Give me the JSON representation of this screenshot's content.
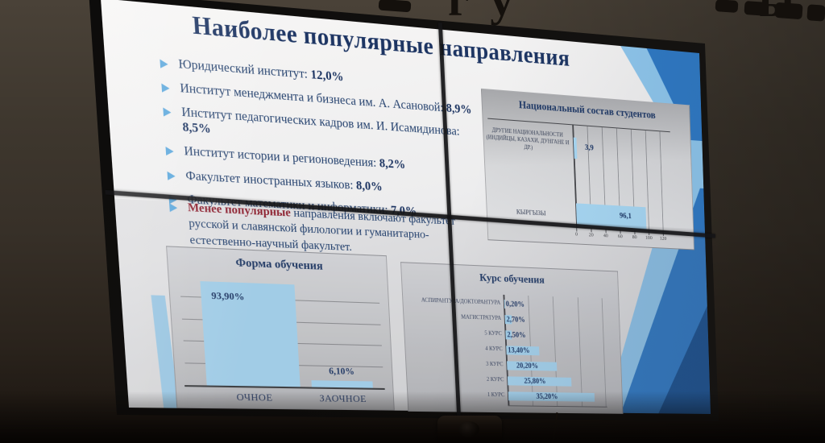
{
  "background": {
    "wall_letters_left": "гу",
    "wall_letters_right": "ы"
  },
  "slide": {
    "title": "Наиболее популярные направления",
    "bullets": [
      {
        "label": "Юридический институт: ",
        "value": "12,0%"
      },
      {
        "label": "Институт менеджмента и бизнеса им. А. Асановой: ",
        "value": "8,9%"
      },
      {
        "label": "Институт педагогических кадров им. И. Исамидинова: ",
        "value": "8,5%"
      },
      {
        "label": "Институт истории и регионоведения: ",
        "value": "8,2%"
      },
      {
        "label": "Факультет иностранных языков: ",
        "value": "8,0%"
      },
      {
        "label": "Факультет математики и информатики: ",
        "value": "7,0%"
      }
    ],
    "note": {
      "highlight": "Менее популярные",
      "rest": " направления включают факультет русской и славянской филологии и гуманитарно-естественно-научный факультет."
    }
  },
  "chart_data": [
    {
      "type": "bar",
      "orientation": "horizontal",
      "title": "Национальный состав студентов",
      "categories": [
        "ДРУГИЕ НАЦИОНАЛЬНОСТИ (ИНДИЙЦЫ, КАЗАХИ, ДУНГАНЕ И ДР.)",
        "КЫРГЫЗЫ"
      ],
      "values": [
        3.9,
        96.1
      ],
      "value_labels": [
        "3,9",
        "96,1"
      ],
      "xlim": [
        0,
        120
      ],
      "xticks": [
        "0",
        "20",
        "40",
        "60",
        "80",
        "100",
        "120"
      ],
      "grid": true,
      "legend": false,
      "bar_color": "#a7d7f3"
    },
    {
      "type": "bar",
      "orientation": "vertical",
      "title": "Форма обучения",
      "categories": [
        "ОЧНОЕ",
        "ЗАОЧНОЕ"
      ],
      "values": [
        93.9,
        6.1
      ],
      "value_labels": [
        "93,90%",
        "6,10%"
      ],
      "ylim": [
        0,
        100
      ],
      "grid": true,
      "legend": false,
      "bar_color": "#a7d7f3"
    },
    {
      "type": "bar",
      "orientation": "horizontal",
      "title": "Курс обучения",
      "categories": [
        "АСПИРАНТУРА/ДОКТОРАНТУРА",
        "МАГИСТРАТУРА",
        "5 КУРС",
        "4 КУРС",
        "3 КУРС",
        "2 КУРС",
        "1 КУРС"
      ],
      "values": [
        0.2,
        2.7,
        2.5,
        13.4,
        20.2,
        25.8,
        35.2
      ],
      "value_labels": [
        "0,20%",
        "2,70%",
        "2,50%",
        "13,40%",
        "20,20%",
        "25,80%",
        "35,20%"
      ],
      "xlim": [
        0,
        40
      ],
      "grid": true,
      "legend": false,
      "bar_color": "#a7d7f3"
    }
  ],
  "colors": {
    "accent_navy": "#1e3866",
    "highlight_red": "#8e2332",
    "bar_blue": "#a7d7f3",
    "slide_bg": "#eeeeef",
    "wall_brown": "#3a332b"
  }
}
